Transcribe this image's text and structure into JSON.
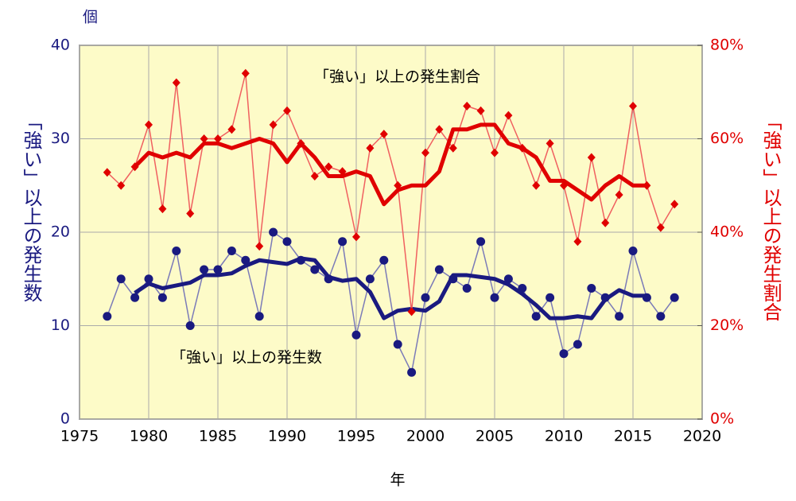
{
  "chart_data": {
    "type": "line",
    "unit_label": "個",
    "ylabel": "「強い」以上の発生数",
    "y2label": "「強い」以上の発生割合",
    "xlabel": "年",
    "annotations": [
      "「強い」以上の発生割合",
      "「強い」以上の発生数"
    ],
    "x": [
      1977,
      1978,
      1979,
      1980,
      1981,
      1982,
      1983,
      1984,
      1985,
      1986,
      1987,
      1988,
      1989,
      1990,
      1991,
      1992,
      1993,
      1994,
      1995,
      1996,
      1997,
      1998,
      1999,
      2000,
      2001,
      2002,
      2003,
      2004,
      2005,
      2006,
      2007,
      2008,
      2009,
      2010,
      2011,
      2012,
      2013,
      2014,
      2015,
      2016,
      2017,
      2018
    ],
    "series": [
      {
        "color": "#7b7bb8",
        "width": 1.5,
        "marker": "circle",
        "marker_color": "#1a1a80",
        "values": [
          11,
          15,
          13,
          15,
          13,
          18,
          10,
          16,
          16,
          18,
          17,
          11,
          20,
          19,
          17,
          16,
          15,
          19,
          9,
          15,
          17,
          8,
          5,
          13,
          16,
          15,
          14,
          19,
          13,
          15,
          14,
          11,
          13,
          7,
          8,
          14,
          13,
          11,
          18,
          13,
          11,
          13
        ]
      },
      {
        "color": "#1a1a80",
        "width": 5,
        "marker": "none",
        "values": [
          null,
          null,
          13.5,
          14.5,
          14,
          14.3,
          14.6,
          15.4,
          15.4,
          15.6,
          16.4,
          17,
          16.8,
          16.6,
          17.2,
          17,
          15.2,
          14.8,
          15,
          13.6,
          10.8,
          11.6,
          11.8,
          11.6,
          12.6,
          15.4,
          15.4,
          15.2,
          15,
          14.4,
          13.4,
          12.2,
          10.8,
          10.8,
          11,
          10.8,
          12.8,
          13.8,
          13.2,
          13.2,
          null,
          null
        ]
      },
      {
        "color": "#f06060",
        "width": 1.5,
        "marker": "diamond",
        "marker_color": "#e00000",
        "axis": "y2",
        "values": [
          52.8,
          50,
          54,
          63,
          45,
          72,
          44,
          60,
          60,
          62,
          74,
          37,
          63,
          66,
          59,
          52,
          54,
          53,
          39,
          58,
          61,
          50,
          23,
          57,
          62,
          58,
          67,
          66,
          57,
          65,
          58,
          50,
          59,
          50,
          38,
          56,
          42,
          48,
          67,
          50,
          41,
          46
        ]
      },
      {
        "color": "#e00000",
        "width": 5,
        "marker": "none",
        "axis": "y2",
        "values": [
          null,
          null,
          54,
          57,
          56,
          57,
          56,
          59,
          59,
          58,
          59,
          60,
          59,
          55,
          59,
          56,
          52,
          52,
          53,
          52,
          46,
          49,
          50,
          50,
          53,
          62,
          62,
          63,
          63,
          59,
          58,
          56,
          51,
          51,
          49,
          47,
          50,
          52,
          50,
          50,
          null,
          null
        ]
      }
    ],
    "xlim": [
      1975,
      2020
    ],
    "xticks": [
      1975,
      1980,
      1985,
      1990,
      1995,
      2000,
      2005,
      2010,
      2015,
      2020
    ],
    "ylim": [
      0,
      40
    ],
    "yticks": [
      0,
      10,
      20,
      30,
      40
    ],
    "y2lim": [
      0,
      80
    ],
    "y2ticks": [
      {
        "value": 0,
        "label": "0%"
      },
      {
        "value": 20,
        "label": "20%"
      },
      {
        "value": 40,
        "label": "40%"
      },
      {
        "value": 60,
        "label": "60%"
      },
      {
        "value": 80,
        "label": "80%"
      }
    ],
    "grid": true,
    "plot_bg": "#fdfbc8",
    "left_color": "#1a1a80",
    "right_color": "#e00000"
  }
}
